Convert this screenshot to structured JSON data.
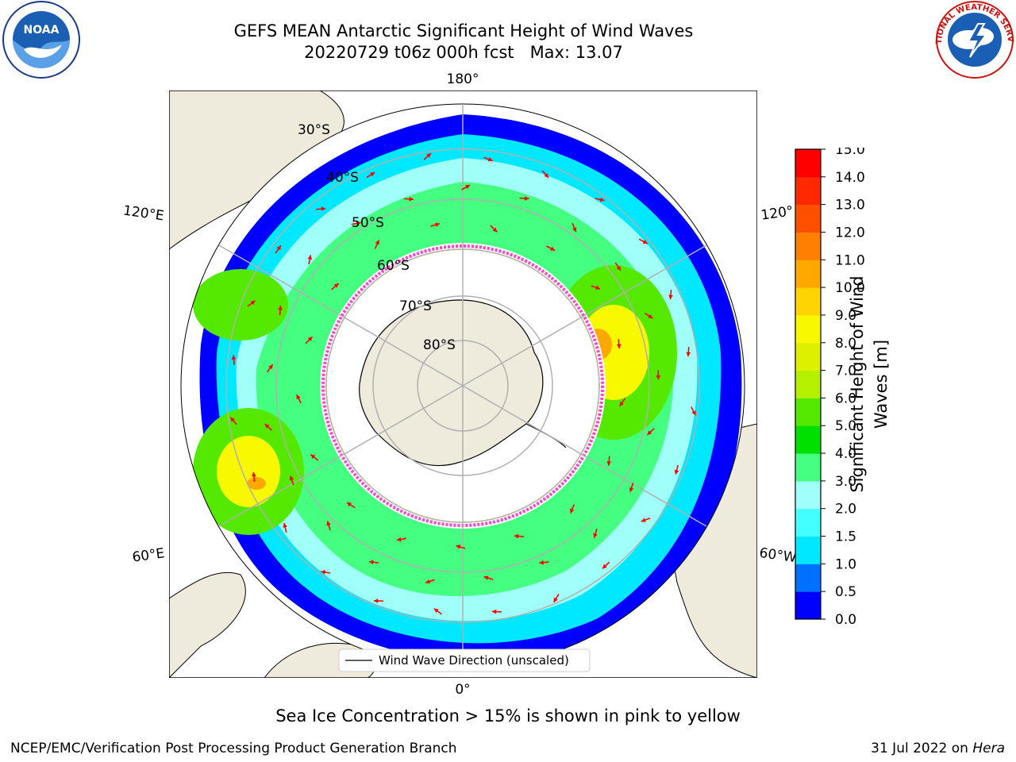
{
  "header": {
    "title": "GEFS MEAN Antarctic Significant Height of Wind Waves",
    "subtitle": "20220729 t06z 000h fcst   Max: 13.07"
  },
  "map": {
    "projection": "south-polar-stereographic",
    "longitude_labels": [
      "180°",
      "120°E",
      "120°",
      "60°E",
      "60°W",
      "0°"
    ],
    "latitude_labels": [
      "30°S",
      "40°S",
      "50°S",
      "60°S",
      "70°S",
      "80°S"
    ],
    "legend_entry": "Wind Wave Direction (unscaled)",
    "colors": {
      "land": "#efebdc",
      "gridline": "#b0b0b0",
      "arrow": "#ff0000",
      "sea_ice_edge": "#ff44cc"
    }
  },
  "colorbar": {
    "label": "Significant Height of Wind Waves [m]",
    "label_line1": "Significant Height of Wind",
    "label_line2": "Waves [m]",
    "ticks": [
      "0.0",
      "0.5",
      "1.0",
      "1.5",
      "2.0",
      "3.0",
      "4.0",
      "5.0",
      "6.0",
      "7.0",
      "8.0",
      "9.0",
      "10.0",
      "11.0",
      "12.0",
      "13.0",
      "14.0",
      "15.0"
    ],
    "colors": [
      "#0000ff",
      "#0070ff",
      "#00e8ff",
      "#44ffff",
      "#a0fff8",
      "#44ff80",
      "#00e000",
      "#55e800",
      "#b4f000",
      "#dcf000",
      "#f8f800",
      "#ffd400",
      "#ffa800",
      "#ff8000",
      "#ff5000",
      "#ff2800",
      "#ff0000"
    ]
  },
  "footer": {
    "caption": "Sea Ice Concentration > 15% is shown in pink to yellow",
    "credit": "NCEP/EMC/Verification Post Processing Product Generation Branch",
    "date": "31 Jul 2022 on ",
    "machine": "Hera"
  },
  "logos": {
    "noaa_text": "NOAA",
    "nws_text": "NATIONAL WEATHER SERVICE"
  }
}
